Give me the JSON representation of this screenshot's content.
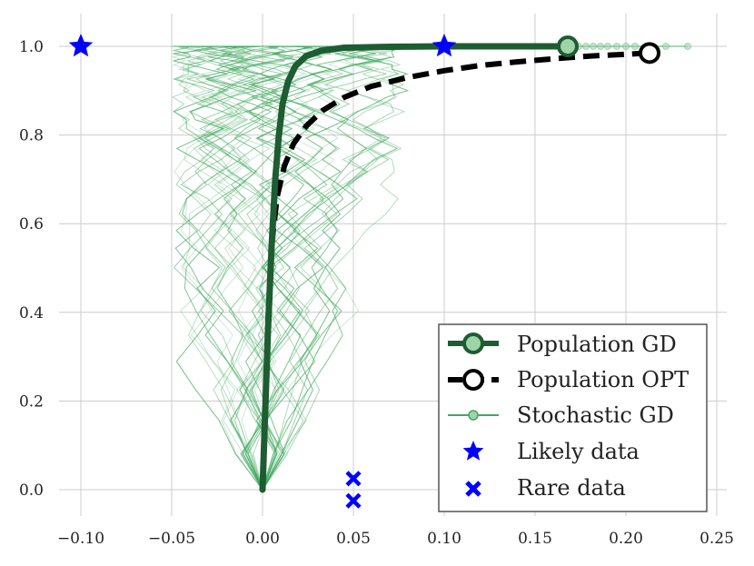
{
  "chart_data": {
    "type": "line",
    "title": "",
    "xlabel": "",
    "ylabel": "",
    "xlim": [
      -0.11,
      0.25
    ],
    "ylim": [
      -0.06,
      1.06
    ],
    "xticks": [
      -0.1,
      -0.05,
      0.0,
      0.05,
      0.1,
      0.15,
      0.2,
      0.25
    ],
    "xtick_labels": [
      "−0.10",
      "−0.05",
      "0.00",
      "0.05",
      "0.10",
      "0.15",
      "0.20",
      "0.25"
    ],
    "yticks": [
      0.0,
      0.2,
      0.4,
      0.6,
      0.8,
      1.0
    ],
    "ytick_labels": [
      "0.0",
      "0.2",
      "0.4",
      "0.6",
      "0.8",
      "1.0"
    ],
    "grid": true,
    "legend_position": "bottom-right",
    "series": [
      {
        "name": "Population GD",
        "color": "#1e5c32",
        "marker_fill": "#9fd4aa",
        "x": [
          0.0,
          0.0015,
          0.003,
          0.005,
          0.007,
          0.009,
          0.011,
          0.014,
          0.018,
          0.024,
          0.032,
          0.045,
          0.07,
          0.1,
          0.13,
          0.168
        ],
        "y": [
          0.0,
          0.18,
          0.36,
          0.55,
          0.7,
          0.8,
          0.87,
          0.92,
          0.955,
          0.978,
          0.99,
          0.997,
          0.999,
          1.0,
          1.0,
          1.0
        ],
        "end_marker": {
          "x": 0.168,
          "y": 1.0
        }
      },
      {
        "name": "Population OPT",
        "color": "#000000",
        "x": [
          0.0,
          0.0015,
          0.003,
          0.005,
          0.008,
          0.012,
          0.017,
          0.024,
          0.033,
          0.045,
          0.06,
          0.08,
          0.1,
          0.12,
          0.14,
          0.16,
          0.18,
          0.2,
          0.213
        ],
        "y": [
          0.0,
          0.18,
          0.38,
          0.55,
          0.66,
          0.73,
          0.78,
          0.82,
          0.855,
          0.885,
          0.91,
          0.93,
          0.945,
          0.957,
          0.965,
          0.972,
          0.978,
          0.982,
          0.985
        ],
        "end_marker": {
          "x": 0.213,
          "y": 0.985
        }
      },
      {
        "name": "Stochastic GD",
        "color": "#41a85f",
        "count": 40,
        "x_range": [
          -0.05,
          0.08
        ],
        "end_points_x": [
          0.17,
          0.174,
          0.178,
          0.182,
          0.186,
          0.19,
          0.195,
          0.2,
          0.205,
          0.212,
          0.222,
          0.234
        ]
      },
      {
        "name": "Likely data",
        "color": "#0000ff",
        "marker": "star",
        "points": [
          {
            "x": -0.1,
            "y": 1.0
          },
          {
            "x": 0.1,
            "y": 1.0
          }
        ]
      },
      {
        "name": "Rare data",
        "color": "#0000ff",
        "marker": "x",
        "points": [
          {
            "x": 0.05,
            "y": 0.025
          },
          {
            "x": 0.05,
            "y": -0.025
          }
        ]
      }
    ]
  },
  "legend": {
    "items": [
      {
        "label": "Population GD"
      },
      {
        "label": "Population OPT"
      },
      {
        "label": "Stochastic GD"
      },
      {
        "label": "Likely data"
      },
      {
        "label": "Rare data"
      }
    ]
  }
}
